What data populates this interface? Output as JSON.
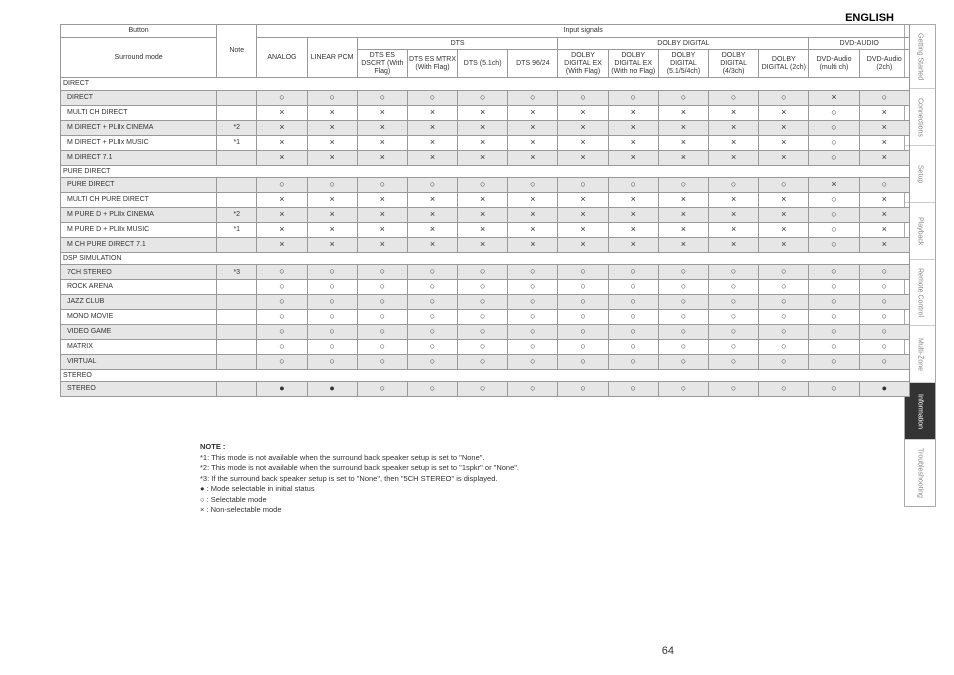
{
  "lang_label": "ENGLISH",
  "page_number": "64",
  "side_tabs": [
    {
      "label": "Getting Started",
      "active": false
    },
    {
      "label": "Connections",
      "active": false
    },
    {
      "label": "Setup",
      "active": false
    },
    {
      "label": "Playback",
      "active": false
    },
    {
      "label": "Remote Control",
      "active": false
    },
    {
      "label": "Multi-Zone",
      "active": false
    },
    {
      "label": "Information",
      "active": true
    },
    {
      "label": "Troubleshooting",
      "active": false
    }
  ],
  "header": {
    "button": "Button",
    "surround_mode": "Surround mode",
    "note": "Note",
    "input_signals": "Input signals",
    "analog": "ANALOG",
    "linear_pcm": "LINEAR PCM",
    "group_dts": "DTS",
    "group_dolby": "DOLBY DIGITAL",
    "group_dvd": "DVD-AUDIO",
    "dts_es_dscrt": "DTS ES DSCRT (With Flag)",
    "dts_es_mtrx": "DTS ES MTRX (With Flag)",
    "dts_51": "DTS (5.1ch)",
    "dts_9624": "DTS 96/24",
    "dolby_ex_flag": "DOLBY DIGITAL EX (With Flag)",
    "dolby_ex_noflag": "DOLBY DIGITAL EX (With no Flag)",
    "dolby_5154": "DOLBY DIGITAL (5.1/5/4ch)",
    "dolby_43": "DOLBY DIGITAL (4/3ch)",
    "dolby_2": "DOLBY DIGITAL (2ch)",
    "dvd_multi": "DVD-Audio (multi ch)",
    "dvd_2": "DVD-Audio (2ch)"
  },
  "symbols": {
    "circle": "○",
    "cross": "×",
    "dot": "●"
  },
  "sections": [
    {
      "label": "DIRECT",
      "rows": [
        {
          "mode": "DIRECT",
          "note": "",
          "shaded": true,
          "sig": [
            "○",
            "○",
            "○",
            "○",
            "○",
            "○",
            "○",
            "○",
            "○",
            "○",
            "○",
            "×",
            "○"
          ]
        },
        {
          "mode": "MULTI CH DIRECT",
          "note": "",
          "shaded": false,
          "sig": [
            "×",
            "×",
            "×",
            "×",
            "×",
            "×",
            "×",
            "×",
            "×",
            "×",
            "×",
            "○",
            "×"
          ]
        },
        {
          "mode": "M DIRECT + PLⅡx CINEMA",
          "note": "*2",
          "shaded": true,
          "sig": [
            "×",
            "×",
            "×",
            "×",
            "×",
            "×",
            "×",
            "×",
            "×",
            "×",
            "×",
            "○",
            "×"
          ]
        },
        {
          "mode": "M DIRECT + PLⅡx MUSIC",
          "note": "*1",
          "shaded": false,
          "sig": [
            "×",
            "×",
            "×",
            "×",
            "×",
            "×",
            "×",
            "×",
            "×",
            "×",
            "×",
            "○",
            "×"
          ]
        },
        {
          "mode": "M DIRECT 7.1",
          "note": "",
          "shaded": true,
          "sig": [
            "×",
            "×",
            "×",
            "×",
            "×",
            "×",
            "×",
            "×",
            "×",
            "×",
            "×",
            "○",
            "×"
          ]
        }
      ]
    },
    {
      "label": "PURE DIRECT",
      "rows": [
        {
          "mode": "PURE DIRECT",
          "note": "",
          "shaded": true,
          "sig": [
            "○",
            "○",
            "○",
            "○",
            "○",
            "○",
            "○",
            "○",
            "○",
            "○",
            "○",
            "×",
            "○"
          ]
        },
        {
          "mode": "MULTI CH PURE DIRECT",
          "note": "",
          "shaded": false,
          "sig": [
            "×",
            "×",
            "×",
            "×",
            "×",
            "×",
            "×",
            "×",
            "×",
            "×",
            "×",
            "○",
            "×"
          ]
        },
        {
          "mode": "M PURE D + PLⅡx CINEMA",
          "note": "*2",
          "shaded": true,
          "sig": [
            "×",
            "×",
            "×",
            "×",
            "×",
            "×",
            "×",
            "×",
            "×",
            "×",
            "×",
            "○",
            "×"
          ]
        },
        {
          "mode": "M PURE D + PLⅡx MUSIC",
          "note": "*1",
          "shaded": false,
          "sig": [
            "×",
            "×",
            "×",
            "×",
            "×",
            "×",
            "×",
            "×",
            "×",
            "×",
            "×",
            "○",
            "×"
          ]
        },
        {
          "mode": "M CH PURE DIRECT 7.1",
          "note": "",
          "shaded": true,
          "sig": [
            "×",
            "×",
            "×",
            "×",
            "×",
            "×",
            "×",
            "×",
            "×",
            "×",
            "×",
            "○",
            "×"
          ]
        }
      ]
    },
    {
      "label": "DSP SIMULATION",
      "rows": [
        {
          "mode": "7CH STEREO",
          "note": "*3",
          "shaded": true,
          "sig": [
            "○",
            "○",
            "○",
            "○",
            "○",
            "○",
            "○",
            "○",
            "○",
            "○",
            "○",
            "○",
            "○"
          ]
        },
        {
          "mode": "ROCK ARENA",
          "note": "",
          "shaded": false,
          "sig": [
            "○",
            "○",
            "○",
            "○",
            "○",
            "○",
            "○",
            "○",
            "○",
            "○",
            "○",
            "○",
            "○"
          ]
        },
        {
          "mode": "JAZZ CLUB",
          "note": "",
          "shaded": true,
          "sig": [
            "○",
            "○",
            "○",
            "○",
            "○",
            "○",
            "○",
            "○",
            "○",
            "○",
            "○",
            "○",
            "○"
          ]
        },
        {
          "mode": "MONO MOVIE",
          "note": "",
          "shaded": false,
          "sig": [
            "○",
            "○",
            "○",
            "○",
            "○",
            "○",
            "○",
            "○",
            "○",
            "○",
            "○",
            "○",
            "○"
          ]
        },
        {
          "mode": "VIDEO GAME",
          "note": "",
          "shaded": true,
          "sig": [
            "○",
            "○",
            "○",
            "○",
            "○",
            "○",
            "○",
            "○",
            "○",
            "○",
            "○",
            "○",
            "○"
          ]
        },
        {
          "mode": "MATRIX",
          "note": "",
          "shaded": false,
          "sig": [
            "○",
            "○",
            "○",
            "○",
            "○",
            "○",
            "○",
            "○",
            "○",
            "○",
            "○",
            "○",
            "○"
          ]
        },
        {
          "mode": "VIRTUAL",
          "note": "",
          "shaded": true,
          "sig": [
            "○",
            "○",
            "○",
            "○",
            "○",
            "○",
            "○",
            "○",
            "○",
            "○",
            "○",
            "○",
            "○"
          ]
        }
      ]
    },
    {
      "label": "STEREO",
      "rows": [
        {
          "mode": "STEREO",
          "note": "",
          "shaded": true,
          "sig": [
            "●",
            "●",
            "○",
            "○",
            "○",
            "○",
            "○",
            "○",
            "○",
            "○",
            "○",
            "○",
            "●"
          ]
        }
      ]
    }
  ],
  "notes": {
    "title": "NOTE :",
    "n1": "*1: This mode is not available when the surround back speaker setup is set to \"None\".",
    "n2": "*2: This mode is not available when the surround back speaker setup is set to \"1spkr\" or \"None\".",
    "n3": "*3: If the surround back speaker setup is set to \"None\", then \"5CH STEREO\" is displayed.",
    "l1": "● : Mode selectable in initial status",
    "l2": "○ : Selectable mode",
    "l3": "× : Non-selectable mode"
  }
}
